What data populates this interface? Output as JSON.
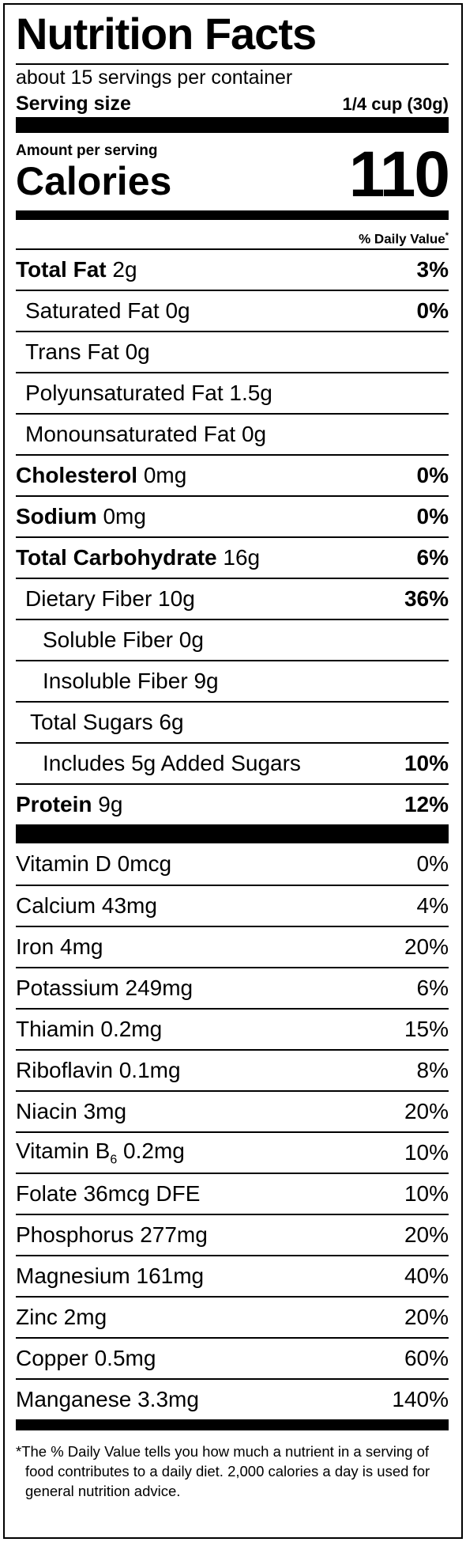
{
  "title": "Nutrition Facts",
  "servings_per_container": "about 15 servings per container",
  "serving_size": {
    "label": "Serving size",
    "value": "1/4 cup (30g)"
  },
  "amount_per_serving": "Amount per serving",
  "calories": {
    "label": "Calories",
    "value": "110"
  },
  "daily_value_header": "% Daily Value",
  "daily_value_mark": "*",
  "nutrients": [
    {
      "name": "Total Fat",
      "amount": "2g",
      "dv": "3%"
    },
    {
      "name": "Saturated Fat",
      "amount": "0g",
      "dv": "0%"
    },
    {
      "name": "Trans Fat",
      "amount": "0g",
      "dv": ""
    },
    {
      "name": "Polyunsaturated Fat",
      "amount": "1.5g",
      "dv": ""
    },
    {
      "name": "Monounsaturated Fat",
      "amount": "0g",
      "dv": ""
    },
    {
      "name": "Cholesterol",
      "amount": "0mg",
      "dv": "0%"
    },
    {
      "name": "Sodium",
      "amount": "0mg",
      "dv": "0%"
    },
    {
      "name": "Total Carbohydrate",
      "amount": "16g",
      "dv": "6%"
    },
    {
      "name": "Dietary Fiber",
      "amount": "10g",
      "dv": "36%"
    },
    {
      "name": "Soluble Fiber",
      "amount": "0g",
      "dv": ""
    },
    {
      "name": "Insoluble Fiber",
      "amount": "9g",
      "dv": ""
    },
    {
      "name": "Total Sugars",
      "amount": "6g",
      "dv": ""
    },
    {
      "name": "Includes 5g Added Sugars",
      "amount": "",
      "dv": "10%"
    },
    {
      "name": "Protein",
      "amount": "9g",
      "dv": "12%"
    }
  ],
  "vitamins": [
    {
      "name": "Vitamin D 0mcg",
      "dv": "0%"
    },
    {
      "name": "Calcium 43mg",
      "dv": "4%"
    },
    {
      "name": "Iron 4mg",
      "dv": "20%"
    },
    {
      "name": "Potassium 249mg",
      "dv": "6%"
    },
    {
      "name": "Thiamin 0.2mg",
      "dv": "15%"
    },
    {
      "name": "Riboflavin 0.1mg",
      "dv": "8%"
    },
    {
      "name": "Niacin 3mg",
      "dv": "20%"
    },
    {
      "name": "Vitamin B",
      "sub": "6",
      "amount": " 0.2mg",
      "dv": "10%"
    },
    {
      "name": "Folate 36mcg DFE",
      "dv": "10%"
    },
    {
      "name": "Phosphorus 277mg",
      "dv": "20%"
    },
    {
      "name": "Magnesium 161mg",
      "dv": "40%"
    },
    {
      "name": "Zinc 2mg",
      "dv": "20%"
    },
    {
      "name": "Copper 0.5mg",
      "dv": "60%"
    },
    {
      "name": "Manganese 3.3mg",
      "dv": "140%"
    }
  ],
  "footnote": "*The % Daily Value tells you how much a nutrient in a serving of food contributes to a daily diet. 2,000 calories a day is used for general nutrition advice."
}
